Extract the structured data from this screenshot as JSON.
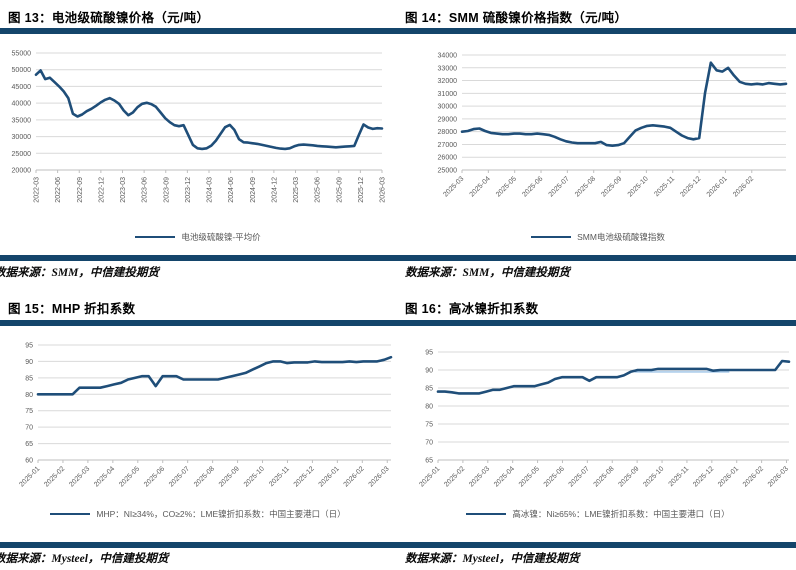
{
  "colors": {
    "line": "#1F4E79",
    "bar": "#14456B",
    "grid": "#D9D9D9",
    "axis_line": "#BFBFBF",
    "axis_text": "#595959",
    "shadow_line": "#9DC3E6"
  },
  "sources": {
    "row1_left": "数据来源：SMM，中信建投期货",
    "row1_right": "数据来源：SMM，中信建投期货",
    "row2_left": "数据来源：Mysteel，中信建投期货",
    "row2_right": "数据来源：Mysteel，中信建投期货"
  },
  "chart_data": [
    {
      "id": "fig13",
      "type": "line",
      "title": "图 13：电池级硫酸镍价格（元/吨）",
      "legend": "电池级硫酸镍-平均价",
      "ylim": [
        20000,
        55000
      ],
      "y_ticks": [
        55000,
        50000,
        45000,
        40000,
        35000,
        30000,
        25000,
        20000
      ],
      "grid": true,
      "legend_position": "bottom",
      "x_ticks": [
        "2022-03",
        "2022-06",
        "2022-09",
        "2022-12",
        "2023-03",
        "2023-06",
        "2023-09",
        "2023-12",
        "2024-03",
        "2024-06",
        "2024-09",
        "2024-12",
        "2025-03",
        "2025-06",
        "2025-09",
        "2025-12",
        "2026-03"
      ],
      "values": [
        48500,
        49800,
        47200,
        47600,
        46300,
        45000,
        43500,
        41500,
        36800,
        36000,
        36600,
        37600,
        38300,
        39200,
        40200,
        41000,
        41500,
        40800,
        39800,
        37800,
        36400,
        37200,
        38800,
        39800,
        40100,
        39700,
        38900,
        37200,
        35500,
        34300,
        33400,
        33100,
        33400,
        30500,
        27500,
        26500,
        26300,
        26500,
        27300,
        28800,
        30800,
        32800,
        33500,
        32000,
        29200,
        28300,
        28200,
        28000,
        27800,
        27500,
        27200,
        26900,
        26600,
        26400,
        26300,
        26500,
        27100,
        27500,
        27600,
        27500,
        27400,
        27200,
        27100,
        27000,
        26900,
        26800,
        26900,
        27000,
        27100,
        27200,
        30500,
        33600,
        32700,
        32300,
        32500,
        32400
      ]
    },
    {
      "id": "fig14",
      "type": "line",
      "title": "图 14：SMM 硫酸镍价格指数（元/吨）",
      "legend": "SMM电池级硫酸镍指数",
      "ylim": [
        25000,
        34000
      ],
      "y_ticks": [
        34000,
        33000,
        32000,
        31000,
        30000,
        29000,
        28000,
        27000,
        26000,
        25000
      ],
      "grid": true,
      "legend_position": "bottom",
      "x_ticks": [
        "2025-03",
        "2025-04",
        "2025-05",
        "2025-06",
        "2025-07",
        "2025-08",
        "2025-09",
        "2025-10",
        "2025-11",
        "2025-12",
        "2026-01",
        "2026-02"
      ],
      "values": [
        28000,
        28050,
        28200,
        28250,
        28050,
        27900,
        27850,
        27800,
        27800,
        27850,
        27850,
        27800,
        27800,
        27850,
        27800,
        27750,
        27600,
        27400,
        27250,
        27150,
        27100,
        27100,
        27100,
        27100,
        27200,
        26950,
        26900,
        26950,
        27100,
        27600,
        28100,
        28300,
        28450,
        28500,
        28450,
        28400,
        28300,
        28000,
        27700,
        27500,
        27400,
        27500,
        31000,
        33400,
        32800,
        32700,
        33000,
        32400,
        31900,
        31750,
        31700,
        31750,
        31700,
        31800,
        31750,
        31700,
        31750
      ]
    },
    {
      "id": "fig15",
      "type": "line",
      "title": "图 15：MHP 折扣系数",
      "legend": "MHP：NI≥34%，CO≥2%：LME镍折扣系数：中国主要港口（日）",
      "ylim": [
        60,
        95
      ],
      "y_ticks": [
        95,
        90,
        85,
        80,
        75,
        70,
        65,
        60
      ],
      "grid": true,
      "legend_position": "bottom",
      "x_ticks": [
        "2025-01",
        "2025-02",
        "2025-03",
        "2025-04",
        "2025-05",
        "2025-06",
        "2025-07",
        "2025-08",
        "2025-09",
        "2025-10",
        "2025-11",
        "2025-12",
        "2026-01",
        "2026-02",
        "2026-03"
      ],
      "values": [
        80,
        80,
        80,
        80,
        80,
        80,
        82,
        82,
        82,
        82,
        82.5,
        83,
        83.5,
        84.5,
        85,
        85.5,
        85.5,
        82.5,
        85.5,
        85.5,
        85.5,
        84.5,
        84.5,
        84.5,
        84.5,
        84.5,
        84.5,
        85,
        85.5,
        86,
        86.5,
        87.5,
        88.5,
        89.5,
        90,
        90,
        89.5,
        89.7,
        89.7,
        89.7,
        90,
        89.8,
        89.8,
        89.8,
        89.8,
        90,
        89.8,
        90,
        90,
        90,
        90.5,
        91.3
      ]
    },
    {
      "id": "fig16",
      "type": "line",
      "title": "图 16：高冰镍折扣系数",
      "legend": "高冰镍：Ni≥65%：LME镍折扣系数：中国主要港口（日）",
      "ylim": [
        65,
        95
      ],
      "y_ticks": [
        95,
        90,
        85,
        80,
        75,
        70,
        65
      ],
      "grid": true,
      "legend_position": "bottom",
      "x_ticks": [
        "2025-01",
        "2025-02",
        "2025-03",
        "2025-04",
        "2025-05",
        "2025-06",
        "2025-07",
        "2025-08",
        "2025-09",
        "2025-10",
        "2025-11",
        "2025-12",
        "2026-01",
        "2026-02",
        "2026-03"
      ],
      "shadow": {
        "value": 89.9,
        "from": 0.56,
        "to": 0.83
      },
      "values": [
        84,
        84,
        83.8,
        83.5,
        83.5,
        83.5,
        83.5,
        84,
        84.5,
        84.5,
        85,
        85.5,
        85.5,
        85.5,
        85.5,
        86,
        86.5,
        87.5,
        88,
        88,
        88,
        88,
        87,
        88,
        88,
        88,
        88,
        88.5,
        89.5,
        90,
        90,
        90,
        90.3,
        90.3,
        90.3,
        90.3,
        90.3,
        90.3,
        90.3,
        90.3,
        89.8,
        90,
        90,
        90,
        90,
        90,
        90,
        90,
        90,
        90,
        92.5,
        92.3
      ]
    }
  ]
}
